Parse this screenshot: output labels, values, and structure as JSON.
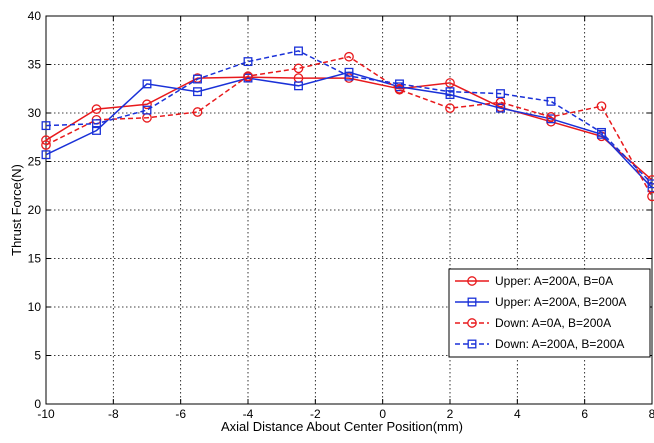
{
  "chart_data": {
    "type": "line",
    "title": "",
    "xlabel": "Axial Distance About Center Position(mm)",
    "ylabel": "Thrust Force(N)",
    "xlim": [
      -10,
      8
    ],
    "ylim": [
      0,
      40
    ],
    "xticks": [
      -10,
      -8,
      -6,
      -4,
      -2,
      0,
      2,
      4,
      6,
      8
    ],
    "yticks": [
      0,
      5,
      10,
      15,
      20,
      25,
      30,
      35,
      40
    ],
    "grid": true,
    "legend_position": "bottom-right",
    "x": [
      -10,
      -8.5,
      -7,
      -5.5,
      -4,
      -2.5,
      -1,
      0.5,
      2,
      3.5,
      5,
      6.5,
      8
    ],
    "series": [
      {
        "name": "Upper: A=200A, B=0A",
        "color": "#e8191c",
        "line_style": "solid",
        "marker": "circle",
        "values": [
          27.2,
          30.4,
          30.9,
          33.6,
          33.7,
          33.6,
          33.6,
          32.5,
          33.1,
          30.6,
          29.1,
          27.6,
          23.1
        ]
      },
      {
        "name": "Upper: A=200A,  B=200A",
        "color": "#1a31d8",
        "line_style": "solid",
        "marker": "square",
        "values": [
          25.7,
          28.2,
          33.0,
          32.2,
          33.6,
          32.8,
          34.2,
          32.7,
          31.9,
          30.5,
          29.4,
          27.8,
          22.3
        ]
      },
      {
        "name": "Down:  A=0A,     B=200A",
        "color": "#e8191c",
        "line_style": "dashed",
        "marker": "circle",
        "values": [
          26.7,
          29.3,
          29.5,
          30.1,
          33.8,
          34.6,
          35.8,
          32.4,
          30.5,
          31.1,
          29.6,
          30.7,
          21.4
        ]
      },
      {
        "name": "Down:  A=200A, B=200A",
        "color": "#1a31d8",
        "line_style": "dashed",
        "marker": "square",
        "values": [
          28.7,
          28.9,
          30.3,
          33.5,
          35.3,
          36.4,
          33.8,
          33.0,
          32.2,
          32.0,
          31.2,
          28.0,
          22.7
        ]
      }
    ]
  }
}
